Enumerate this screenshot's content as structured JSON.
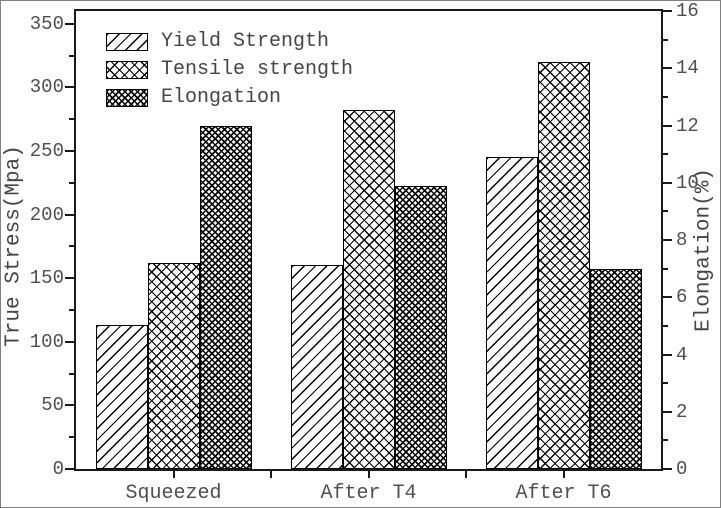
{
  "chart_data": {
    "type": "bar",
    "title": "",
    "categories": [
      "Squeezed",
      "After T4",
      "After T6"
    ],
    "series": [
      {
        "name": "Yield Strength",
        "axis": "left",
        "pattern": "diagonal",
        "values": [
          113,
          160,
          245
        ]
      },
      {
        "name": "Tensile strength",
        "axis": "left",
        "pattern": "crosshatch",
        "values": [
          162,
          282,
          320
        ]
      },
      {
        "name": "Elongation",
        "axis": "right",
        "pattern": "dense-crosshatch",
        "values": [
          12,
          9.9,
          7
        ]
      }
    ],
    "left_axis": {
      "label": "True Stress(Mpa)",
      "range": [
        0,
        360
      ],
      "ticks": [
        0,
        50,
        100,
        150,
        200,
        250,
        300,
        350
      ],
      "minor_step": 25
    },
    "right_axis": {
      "label": "Elongation(%)",
      "range": [
        0,
        16
      ],
      "ticks": [
        0,
        2,
        4,
        6,
        8,
        10,
        12,
        14,
        16
      ],
      "minor_step": 1
    },
    "legend": [
      "Yield Strength",
      "Tensile strength",
      "Elongation"
    ],
    "legend_position": "top-left-inside",
    "grid": false,
    "colors": {
      "line": "#1a1a1a",
      "text": "#4f4f4f",
      "background": "#ffffff"
    }
  }
}
